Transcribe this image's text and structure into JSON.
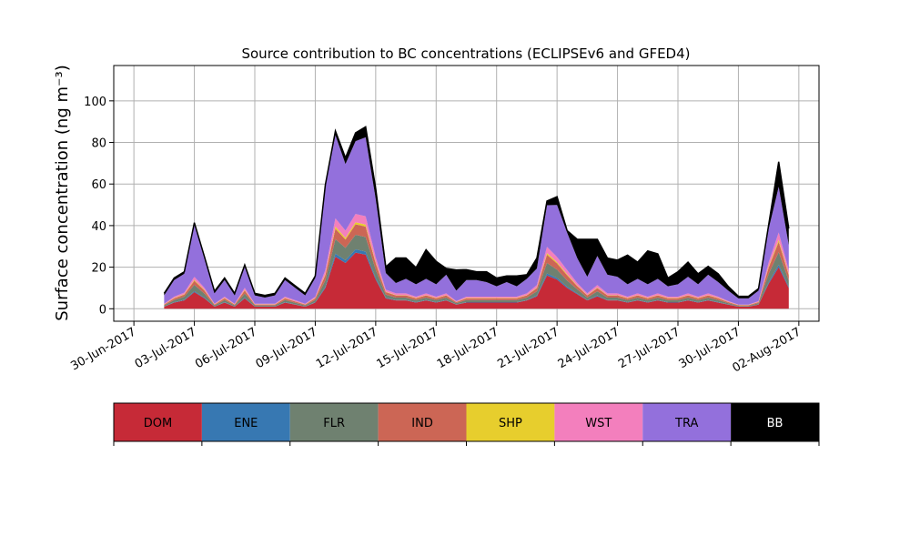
{
  "chart_data": {
    "type": "area",
    "stacked": true,
    "title": "Source contribution to BC concentrations (ECLIPSEv6 and GFED4)",
    "ylabel": "Surface concentration (ng m⁻³)",
    "xlabel": "",
    "x_range": [
      "2017-06-29",
      "2017-08-03"
    ],
    "ylim": [
      -6,
      117
    ],
    "grid": true,
    "x_ticks": [
      "2017-06-30",
      "2017-07-03",
      "2017-07-06",
      "2017-07-09",
      "2017-07-12",
      "2017-07-15",
      "2017-07-18",
      "2017-07-21",
      "2017-07-24",
      "2017-07-27",
      "2017-07-30",
      "2017-08-02"
    ],
    "x_tick_labels": [
      "30-Jun-2017",
      "03-Jul-2017",
      "06-Jul-2017",
      "09-Jul-2017",
      "12-Jul-2017",
      "15-Jul-2017",
      "18-Jul-2017",
      "21-Jul-2017",
      "24-Jul-2017",
      "27-Jul-2017",
      "30-Jul-2017",
      "02-Aug-2017"
    ],
    "y_ticks": [
      0,
      20,
      40,
      60,
      80,
      100
    ],
    "y_tick_labels": [
      "0",
      "20",
      "40",
      "60",
      "80",
      "100"
    ],
    "legend_placement": "below",
    "x": [
      "2017-07-01T12:00",
      "2017-07-02T00:00",
      "2017-07-02T12:00",
      "2017-07-03T00:00",
      "2017-07-03T12:00",
      "2017-07-04T00:00",
      "2017-07-04T12:00",
      "2017-07-05T00:00",
      "2017-07-05T12:00",
      "2017-07-06T00:00",
      "2017-07-06T12:00",
      "2017-07-07T00:00",
      "2017-07-07T12:00",
      "2017-07-08T00:00",
      "2017-07-08T12:00",
      "2017-07-09T00:00",
      "2017-07-09T12:00",
      "2017-07-10T00:00",
      "2017-07-10T12:00",
      "2017-07-11T00:00",
      "2017-07-11T12:00",
      "2017-07-12T00:00",
      "2017-07-12T12:00",
      "2017-07-13T00:00",
      "2017-07-13T12:00",
      "2017-07-14T00:00",
      "2017-07-14T12:00",
      "2017-07-15T00:00",
      "2017-07-15T12:00",
      "2017-07-16T00:00",
      "2017-07-16T12:00",
      "2017-07-17T00:00",
      "2017-07-17T12:00",
      "2017-07-18T00:00",
      "2017-07-18T12:00",
      "2017-07-19T00:00",
      "2017-07-19T12:00",
      "2017-07-20T00:00",
      "2017-07-20T12:00",
      "2017-07-21T00:00",
      "2017-07-21T12:00",
      "2017-07-22T00:00",
      "2017-07-22T12:00",
      "2017-07-23T00:00",
      "2017-07-23T12:00",
      "2017-07-24T00:00",
      "2017-07-24T12:00",
      "2017-07-25T00:00",
      "2017-07-25T12:00",
      "2017-07-26T00:00",
      "2017-07-26T12:00",
      "2017-07-27T00:00",
      "2017-07-27T12:00",
      "2017-07-28T00:00",
      "2017-07-28T12:00",
      "2017-07-29T00:00",
      "2017-07-29T12:00",
      "2017-07-30T00:00",
      "2017-07-30T12:00",
      "2017-07-31T00:00",
      "2017-07-31T12:00",
      "2017-08-01T00:00",
      "2017-08-01T12:00"
    ],
    "series": [
      {
        "name": "DOM",
        "color": "#c62a37",
        "values": [
          1,
          3,
          4,
          8,
          5,
          1,
          3,
          1,
          5,
          1,
          1,
          1,
          3,
          2,
          1,
          3,
          10,
          25,
          22,
          27,
          26,
          14,
          5,
          4,
          4,
          3,
          4,
          3,
          4,
          2,
          3,
          3,
          3,
          3,
          3,
          3,
          4,
          6,
          16,
          14,
          10,
          7,
          4,
          6,
          4,
          4,
          3,
          4,
          3,
          4,
          3,
          3,
          4,
          3,
          4,
          3,
          2,
          1,
          1,
          2,
          12,
          20,
          10
        ]
      },
      {
        "name": "ENE",
        "color": "#3778b2",
        "values": [
          0.1,
          0.2,
          0.3,
          0.5,
          0.3,
          0.1,
          0.2,
          0.1,
          0.3,
          0.1,
          0.1,
          0.1,
          0.2,
          0.1,
          0.1,
          0.2,
          0.6,
          1.5,
          1.3,
          1.6,
          1.5,
          0.8,
          0.3,
          0.2,
          0.2,
          0.2,
          0.2,
          0.2,
          0.2,
          0.1,
          0.2,
          0.2,
          0.2,
          0.2,
          0.2,
          0.2,
          0.2,
          0.4,
          1,
          0.8,
          0.6,
          0.4,
          0.2,
          0.4,
          0.2,
          0.2,
          0.2,
          0.2,
          0.2,
          0.2,
          0.2,
          0.2,
          0.2,
          0.2,
          0.2,
          0.2,
          0.1,
          0.1,
          0.1,
          0.1,
          0.7,
          1.2,
          0.6
        ]
      },
      {
        "name": "FLR",
        "color": "#6f8170",
        "values": [
          0.5,
          1,
          1.5,
          3,
          2,
          0.5,
          1,
          0.5,
          2,
          0.5,
          0.5,
          0.5,
          1,
          0.8,
          0.5,
          1,
          3,
          7,
          6,
          7,
          7,
          4,
          1.5,
          1.2,
          1.2,
          1,
          1.2,
          1,
          1.2,
          0.6,
          1,
          1,
          1,
          1,
          1,
          1,
          1.2,
          2,
          5,
          4,
          3,
          2,
          1.2,
          2,
          1.2,
          1.2,
          1,
          1.2,
          1,
          1.2,
          1,
          1,
          1.2,
          1,
          1.2,
          1,
          0.6,
          0.3,
          0.3,
          0.6,
          4,
          6,
          3
        ]
      },
      {
        "name": "IND",
        "color": "#cc6655",
        "values": [
          0.4,
          0.8,
          1,
          2,
          1.5,
          0.4,
          0.8,
          0.4,
          1.5,
          0.4,
          0.4,
          0.4,
          0.8,
          0.6,
          0.4,
          0.8,
          2.5,
          5,
          4,
          5,
          5,
          3,
          1.2,
          1,
          1,
          0.8,
          1,
          0.8,
          1,
          0.5,
          0.8,
          0.8,
          0.8,
          0.8,
          0.8,
          0.8,
          1,
          1.5,
          4,
          3,
          2.5,
          1.5,
          1,
          1.5,
          1,
          1,
          0.8,
          1,
          0.8,
          1,
          0.8,
          0.8,
          1,
          0.8,
          1,
          0.8,
          0.5,
          0.3,
          0.3,
          0.5,
          3,
          5,
          2.5
        ]
      },
      {
        "name": "SHP",
        "color": "#e7ce2d",
        "values": [
          0.1,
          0.2,
          0.2,
          0.4,
          0.3,
          0.1,
          0.2,
          0.1,
          0.3,
          0.1,
          0.1,
          0.1,
          0.2,
          0.1,
          0.1,
          0.2,
          0.5,
          1,
          0.8,
          1,
          1,
          0.6,
          0.2,
          0.2,
          0.2,
          0.2,
          0.2,
          0.2,
          0.2,
          0.1,
          0.2,
          0.2,
          0.2,
          0.2,
          0.2,
          0.2,
          0.2,
          0.3,
          0.8,
          0.6,
          0.5,
          0.3,
          0.2,
          0.3,
          0.2,
          0.2,
          0.2,
          0.2,
          0.2,
          0.2,
          0.2,
          0.2,
          0.2,
          0.2,
          0.2,
          0.2,
          0.1,
          0.1,
          0.1,
          0.1,
          0.6,
          1,
          0.5
        ]
      },
      {
        "name": "WST",
        "color": "#f37fbd",
        "values": [
          0.3,
          0.6,
          0.8,
          1.5,
          1,
          0.3,
          0.6,
          0.3,
          1,
          0.3,
          0.3,
          0.3,
          0.6,
          0.5,
          0.3,
          0.6,
          2,
          4,
          3.5,
          4,
          4,
          2.5,
          1,
          0.8,
          0.8,
          0.6,
          0.8,
          0.6,
          0.8,
          0.4,
          0.6,
          0.6,
          0.6,
          0.6,
          0.6,
          0.6,
          0.8,
          1.2,
          3,
          2.5,
          2,
          1.2,
          0.8,
          1.2,
          0.8,
          0.8,
          0.6,
          0.8,
          0.6,
          0.8,
          0.6,
          0.6,
          0.8,
          0.6,
          0.8,
          0.6,
          0.4,
          0.2,
          0.2,
          0.4,
          2,
          3.5,
          2
        ]
      },
      {
        "name": "TRA",
        "color": "#9370dc",
        "values": [
          4,
          8,
          9,
          25,
          14,
          5,
          8,
          4,
          10,
          4,
          3,
          4,
          8,
          6,
          4,
          9,
          40,
          40,
          32,
          35,
          38,
          28,
          8,
          5,
          7,
          6,
          7,
          6,
          9,
          5,
          8,
          8,
          7,
          5,
          7,
          5,
          7,
          8,
          20,
          25,
          18,
          12,
          8,
          14,
          9,
          8,
          6,
          7,
          6,
          7,
          5,
          6,
          8,
          6,
          9,
          7,
          5,
          3,
          3,
          5,
          16,
          22,
          12
        ]
      },
      {
        "name": "BB",
        "color": "#000000",
        "values": [
          1,
          1,
          1,
          1,
          1,
          1,
          1,
          1,
          1,
          1,
          1,
          1,
          1,
          1,
          1,
          1,
          1,
          2,
          3,
          4,
          5,
          5,
          3,
          12,
          10,
          8,
          14,
          11,
          3,
          10,
          5,
          4,
          5,
          4,
          3,
          5,
          2,
          5,
          2,
          4,
          1,
          9,
          18,
          8,
          8,
          8,
          14,
          8,
          16,
          12,
          4,
          6,
          7,
          5,
          4,
          4,
          2,
          1,
          1,
          1,
          2,
          12,
          8
        ]
      }
    ]
  }
}
